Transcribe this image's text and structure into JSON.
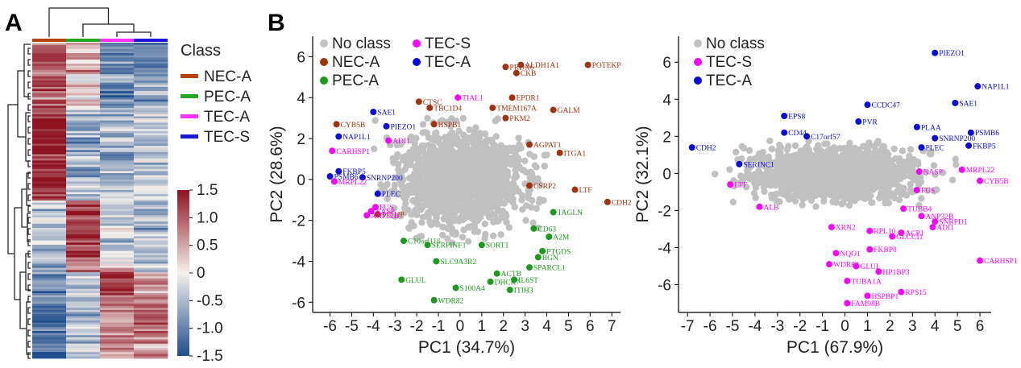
{
  "panel_labels": {
    "a": "A",
    "b": "B"
  },
  "colors": {
    "NEC-A": "#a0320d",
    "PEC-A": "#1c9a1c",
    "TEC-A": "#0a0adc",
    "TEC-S": "#ff00ff",
    "No class": "#c0c0c0",
    "col_NEC-A": "#b3440d",
    "col_PEC-A": "#22a822",
    "col_TEC-A": "#ff33ff",
    "col_TEC-S": "#1a1ad6",
    "heat_low": "#1f4e8c",
    "heat_mid": "#f4f0ec",
    "heat_high": "#8e1220"
  },
  "heatmap": {
    "legend_title": "Class",
    "legend_items": [
      {
        "label": "NEC-A",
        "color_key": "col_NEC-A"
      },
      {
        "label": "PEC-A",
        "color_key": "col_PEC-A"
      },
      {
        "label": "TEC-A",
        "color_key": "col_TEC-A"
      },
      {
        "label": "TEC-S",
        "color_key": "col_TEC-S"
      }
    ],
    "columns": [
      "NEC-A",
      "PEC-A",
      "TEC-A",
      "TEC-S"
    ],
    "colorbar_range": [
      -1.5,
      1.5
    ],
    "colorbar_ticks": [
      "1.5",
      "1.0",
      "0.5",
      "0",
      "-0.5",
      "-1.0",
      "-1.5"
    ],
    "column_profile": [
      [
        0.8,
        0.3,
        -0.9,
        -1.1
      ],
      [
        0.9,
        0.5,
        -1.0,
        -0.9
      ],
      [
        1.0,
        0.2,
        -0.8,
        -1.0
      ],
      [
        0.6,
        0.8,
        -1.1,
        -0.7
      ],
      [
        0.9,
        -0.2,
        -0.6,
        -0.8
      ],
      [
        1.1,
        0.4,
        -0.9,
        -0.5
      ],
      [
        0.7,
        0.1,
        -1.2,
        -0.6
      ],
      [
        1.0,
        0.6,
        -0.7,
        -1.1
      ],
      [
        1.3,
        -0.4,
        -0.5,
        -0.6
      ],
      [
        1.4,
        -0.6,
        -0.7,
        -0.3
      ],
      [
        1.5,
        -0.8,
        -0.4,
        -0.5
      ],
      [
        1.3,
        -0.5,
        -0.9,
        -0.2
      ],
      [
        1.4,
        -0.9,
        -0.3,
        -0.6
      ],
      [
        1.5,
        -0.7,
        -0.6,
        -0.4
      ],
      [
        1.2,
        -0.4,
        -0.8,
        -0.1
      ],
      [
        1.4,
        -0.6,
        -0.2,
        -0.7
      ],
      [
        1.3,
        -0.8,
        -0.5,
        -0.3
      ],
      [
        1.5,
        -0.5,
        -0.7,
        -0.5
      ],
      [
        1.2,
        -0.3,
        -0.6,
        -0.4
      ],
      [
        1.1,
        -0.6,
        -0.4,
        -0.2
      ],
      [
        -0.4,
        1.2,
        -0.3,
        -0.6
      ],
      [
        -0.6,
        1.4,
        -0.2,
        -0.5
      ],
      [
        -0.3,
        1.1,
        -0.5,
        -0.4
      ],
      [
        -0.5,
        1.3,
        -0.1,
        -0.8
      ],
      [
        -0.7,
        1.5,
        -0.4,
        -0.3
      ],
      [
        -0.4,
        1.2,
        -0.6,
        -0.2
      ],
      [
        -0.6,
        1.4,
        -0.2,
        -0.7
      ],
      [
        -0.5,
        1.0,
        0.1,
        -0.5
      ],
      [
        -0.8,
        0.9,
        0.5,
        -0.3
      ],
      [
        -0.9,
        -0.3,
        1.2,
        0.4
      ],
      [
        -1.0,
        -0.5,
        1.0,
        0.6
      ],
      [
        -1.1,
        -0.2,
        1.3,
        0.3
      ],
      [
        -0.9,
        -0.6,
        0.9,
        0.8
      ],
      [
        -1.2,
        -0.4,
        0.7,
        1.0
      ],
      [
        -1.0,
        -0.7,
        0.6,
        1.2
      ],
      [
        -1.3,
        -0.5,
        0.4,
        1.1
      ],
      [
        -1.1,
        -0.2,
        0.5,
        0.9
      ],
      [
        -1.4,
        -0.6,
        0.8,
        0.7
      ],
      [
        -1.2,
        -0.3,
        0.6,
        0.5
      ],
      [
        -1.5,
        -0.4,
        0.3,
        0.8
      ]
    ],
    "rows": 150
  },
  "chart_data": [
    {
      "type": "scatter",
      "title": "",
      "xlabel": "PC1 (34.7%)",
      "ylabel": "PC2 (28.6%)",
      "xlim": [
        -6.8,
        7.4
      ],
      "ylim": [
        -6.5,
        7.0
      ],
      "xticks": [
        -6,
        -5,
        -4,
        -3,
        -2,
        -1,
        0,
        1,
        2,
        3,
        4,
        5,
        6,
        7
      ],
      "yticks": [
        -6,
        -4,
        -2,
        0,
        2,
        4,
        6
      ],
      "legend": [
        {
          "label": "No class",
          "color_key": "No class"
        },
        {
          "label": "TEC-S",
          "color_key": "TEC-S"
        },
        {
          "label": "NEC-A",
          "color_key": "NEC-A"
        },
        {
          "label": "TEC-A",
          "color_key": "TEC-A"
        },
        {
          "label": "PEC-A",
          "color_key": "PEC-A"
        }
      ],
      "background_cloud": {
        "class": "No class",
        "center": [
          0.0,
          0.0
        ],
        "spread": [
          1.9,
          1.5
        ]
      },
      "points": [
        {
          "label": "POTEKP",
          "x": 5.9,
          "y": 5.6,
          "class": "NEC-A"
        },
        {
          "label": "ALDH1A1",
          "x": 2.8,
          "y": 5.6,
          "class": "NEC-A"
        },
        {
          "label": "PRDX6",
          "x": 2.1,
          "y": 5.5,
          "class": "NEC-A"
        },
        {
          "label": "CKB",
          "x": 2.6,
          "y": 5.2,
          "class": "NEC-A"
        },
        {
          "label": "EPDR1",
          "x": 2.4,
          "y": 4.0,
          "class": "NEC-A"
        },
        {
          "label": "CTSC",
          "x": -1.9,
          "y": 3.8,
          "class": "NEC-A"
        },
        {
          "label": "TBC1D4",
          "x": -1.4,
          "y": 3.5,
          "class": "NEC-A"
        },
        {
          "label": "TMEM167A",
          "x": 1.5,
          "y": 3.5,
          "class": "NEC-A"
        },
        {
          "label": "GALM",
          "x": 4.3,
          "y": 3.4,
          "class": "NEC-A"
        },
        {
          "label": "PKM2",
          "x": 2.1,
          "y": 3.0,
          "class": "NEC-A"
        },
        {
          "label": "CYB5B",
          "x": -5.7,
          "y": 2.7,
          "class": "NEC-A"
        },
        {
          "label": "HSPB1",
          "x": -1.2,
          "y": 2.7,
          "class": "NEC-A"
        },
        {
          "label": "AGPAT1",
          "x": 3.2,
          "y": 1.7,
          "class": "NEC-A"
        },
        {
          "label": "ITGA1",
          "x": 4.6,
          "y": 1.3,
          "class": "NEC-A"
        },
        {
          "label": "CSRP2",
          "x": 3.2,
          "y": -0.3,
          "class": "NEC-A"
        },
        {
          "label": "LTF",
          "x": 5.3,
          "y": -0.5,
          "class": "NEC-A"
        },
        {
          "label": "CDH2",
          "x": 6.8,
          "y": -1.1,
          "class": "NEC-A"
        },
        {
          "label": "MT1JP",
          "x": -3.8,
          "y": -1.7,
          "class": "NEC-A"
        },
        {
          "label": "SAE1",
          "x": -4.0,
          "y": 3.3,
          "class": "TEC-A"
        },
        {
          "label": "PIEZO1",
          "x": -3.4,
          "y": 2.6,
          "class": "TEC-A"
        },
        {
          "label": "NAP1L1",
          "x": -5.6,
          "y": 2.1,
          "class": "TEC-A"
        },
        {
          "label": "FKBP5",
          "x": -5.6,
          "y": 0.4,
          "class": "TEC-A"
        },
        {
          "label": "PSMB6",
          "x": -6.0,
          "y": 0.15,
          "class": "TEC-A"
        },
        {
          "label": "SNRNP200",
          "x": -4.5,
          "y": 0.1,
          "class": "TEC-A"
        },
        {
          "label": "PLEC",
          "x": -3.8,
          "y": -0.7,
          "class": "TEC-A"
        },
        {
          "label": "TIAL1",
          "x": -0.1,
          "y": 4.0,
          "class": "TEC-S"
        },
        {
          "label": "ADI1",
          "x": -3.3,
          "y": 1.9,
          "class": "TEC-S"
        },
        {
          "label": "CARHSP1",
          "x": -5.9,
          "y": 1.4,
          "class": "TEC-S"
        },
        {
          "label": "MRPL22",
          "x": -5.8,
          "y": -0.1,
          "class": "TEC-S"
        },
        {
          "label": "FUS",
          "x": -3.9,
          "y": -1.35,
          "class": "TEC-S"
        },
        {
          "label": "NASP",
          "x": -4.1,
          "y": -1.55,
          "class": "TEC-S"
        },
        {
          "label": "ANP32B",
          "x": -4.3,
          "y": -1.75,
          "class": "TEC-S"
        },
        {
          "label": "TAGLN",
          "x": 4.3,
          "y": -1.6,
          "class": "PEC-A"
        },
        {
          "label": "CD63",
          "x": 3.4,
          "y": -2.4,
          "class": "PEC-A"
        },
        {
          "label": "A2M",
          "x": 4.1,
          "y": -2.8,
          "class": "PEC-A"
        },
        {
          "label": "C10orf116",
          "x": -2.6,
          "y": -3.0,
          "class": "PEC-A"
        },
        {
          "label": "SERPINF1",
          "x": -1.5,
          "y": -3.2,
          "class": "PEC-A"
        },
        {
          "label": "SORT1",
          "x": 1.0,
          "y": -3.2,
          "class": "PEC-A"
        },
        {
          "label": "PTGDS",
          "x": 3.8,
          "y": -3.5,
          "class": "PEC-A"
        },
        {
          "label": "BGN",
          "x": 3.6,
          "y": -3.8,
          "class": "PEC-A"
        },
        {
          "label": "SLC9A3R2",
          "x": -1.1,
          "y": -4.0,
          "class": "PEC-A"
        },
        {
          "label": "SPARCL1",
          "x": 3.2,
          "y": -4.3,
          "class": "PEC-A"
        },
        {
          "label": "ACTB",
          "x": 1.7,
          "y": -4.6,
          "class": "PEC-A"
        },
        {
          "label": "GLUL",
          "x": -2.7,
          "y": -4.9,
          "class": "PEC-A"
        },
        {
          "label": "IL6ST",
          "x": 2.5,
          "y": -4.9,
          "class": "PEC-A"
        },
        {
          "label": "DHCR7",
          "x": 1.4,
          "y": -5.0,
          "class": "PEC-A"
        },
        {
          "label": "S100A4",
          "x": -0.2,
          "y": -5.3,
          "class": "PEC-A"
        },
        {
          "label": "ITIH3",
          "x": 2.3,
          "y": -5.4,
          "class": "PEC-A"
        },
        {
          "label": "WDR82",
          "x": -1.2,
          "y": -5.9,
          "class": "PEC-A"
        }
      ]
    },
    {
      "type": "scatter",
      "title": "",
      "xlabel": "PC1 (67.9%)",
      "ylabel": "PC2 (32.1%)",
      "xlim": [
        -7.4,
        6.5
      ],
      "ylim": [
        -7.5,
        7.4
      ],
      "xticks": [
        -7,
        -6,
        -5,
        -4,
        -3,
        -2,
        -1,
        0,
        1,
        2,
        3,
        4,
        5,
        6
      ],
      "yticks": [
        -6,
        -4,
        -2,
        0,
        2,
        4,
        6
      ],
      "legend": [
        {
          "label": "No class",
          "color_key": "No class"
        },
        {
          "label": "TEC-S",
          "color_key": "TEC-S"
        },
        {
          "label": "TEC-A",
          "color_key": "TEC-A"
        }
      ],
      "background_cloud": {
        "class": "No class",
        "center": [
          -0.5,
          0.0
        ],
        "spread": [
          2.4,
          0.9
        ]
      },
      "points": [
        {
          "label": "PIEZO1",
          "x": 4.0,
          "y": 6.5,
          "class": "TEC-A"
        },
        {
          "label": "NAP1L1",
          "x": 5.9,
          "y": 4.7,
          "class": "TEC-A"
        },
        {
          "label": "SAE1",
          "x": 4.9,
          "y": 3.8,
          "class": "TEC-A"
        },
        {
          "label": "CCDC47",
          "x": 1.0,
          "y": 3.7,
          "class": "TEC-A"
        },
        {
          "label": "EPS8",
          "x": -2.7,
          "y": 3.1,
          "class": "TEC-A"
        },
        {
          "label": "PVR",
          "x": 0.6,
          "y": 2.8,
          "class": "TEC-A"
        },
        {
          "label": "PLAA",
          "x": 3.2,
          "y": 2.5,
          "class": "TEC-A"
        },
        {
          "label": "PSMB6",
          "x": 5.6,
          "y": 2.2,
          "class": "TEC-A"
        },
        {
          "label": "CD44",
          "x": -2.7,
          "y": 2.2,
          "class": "TEC-A"
        },
        {
          "label": "C17orf57",
          "x": -1.7,
          "y": 2.0,
          "class": "TEC-A"
        },
        {
          "label": "SNRNP200",
          "x": 4.0,
          "y": 1.9,
          "class": "TEC-A"
        },
        {
          "label": "FKBP5",
          "x": 5.5,
          "y": 1.5,
          "class": "TEC-A"
        },
        {
          "label": "PLEC",
          "x": 3.4,
          "y": 1.4,
          "class": "TEC-A"
        },
        {
          "label": "CDH2",
          "x": -6.8,
          "y": 1.4,
          "class": "TEC-A"
        },
        {
          "label": "SERINC1",
          "x": -4.7,
          "y": 0.5,
          "class": "TEC-A"
        },
        {
          "label": "LTF",
          "x": -5.1,
          "y": -0.6,
          "class": "TEC-S"
        },
        {
          "label": "MRPL22",
          "x": 5.2,
          "y": 0.2,
          "class": "TEC-S"
        },
        {
          "label": "NASP",
          "x": 3.3,
          "y": 0.1,
          "class": "TEC-S"
        },
        {
          "label": "CYB5B",
          "x": 6.0,
          "y": -0.4,
          "class": "TEC-S"
        },
        {
          "label": "FUS",
          "x": 3.2,
          "y": -0.9,
          "class": "TEC-S"
        },
        {
          "label": "ALB",
          "x": -3.8,
          "y": -1.8,
          "class": "TEC-S"
        },
        {
          "label": "TUBB4",
          "x": 2.6,
          "y": -1.9,
          "class": "TEC-S"
        },
        {
          "label": "ANP32B",
          "x": 3.4,
          "y": -2.3,
          "class": "TEC-S"
        },
        {
          "label": "SNRPD1",
          "x": 4.0,
          "y": -2.6,
          "class": "TEC-S"
        },
        {
          "label": "XRN2",
          "x": -0.6,
          "y": -2.9,
          "class": "TEC-S"
        },
        {
          "label": "ADI1",
          "x": 3.9,
          "y": -2.9,
          "class": "TEC-S"
        },
        {
          "label": "RPL10",
          "x": 1.1,
          "y": -3.1,
          "class": "TEC-S"
        },
        {
          "label": "ACP1",
          "x": 2.5,
          "y": -3.2,
          "class": "TEC-S"
        },
        {
          "label": "GLCCI1",
          "x": 2.1,
          "y": -3.4,
          "class": "TEC-S"
        },
        {
          "label": "FKBP8",
          "x": 1.1,
          "y": -4.1,
          "class": "TEC-S"
        },
        {
          "label": "NQO1",
          "x": -0.4,
          "y": -4.3,
          "class": "TEC-S"
        },
        {
          "label": "CARHSP1",
          "x": 6.0,
          "y": -4.7,
          "class": "TEC-S"
        },
        {
          "label": "WDR82",
          "x": -0.7,
          "y": -4.9,
          "class": "TEC-S"
        },
        {
          "label": "GLUL",
          "x": 0.5,
          "y": -5.0,
          "class": "TEC-S"
        },
        {
          "label": "HP1BP3",
          "x": 1.5,
          "y": -5.3,
          "class": "TEC-S"
        },
        {
          "label": "TUBA1A",
          "x": 0.1,
          "y": -5.8,
          "class": "TEC-S"
        },
        {
          "label": "RPS15",
          "x": 2.5,
          "y": -6.4,
          "class": "TEC-S"
        },
        {
          "label": "HSPBP1",
          "x": 1.0,
          "y": -6.6,
          "class": "TEC-S"
        },
        {
          "label": "FAM98B",
          "x": 0.1,
          "y": -7.0,
          "class": "TEC-S"
        }
      ]
    }
  ]
}
